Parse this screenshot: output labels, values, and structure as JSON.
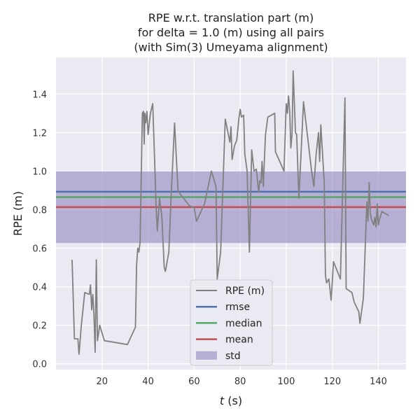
{
  "chart_data": {
    "type": "line",
    "title_lines": [
      "RPE w.r.t. translation part (m)",
      "for delta = 1.0 (m) using all pairs",
      "(with Sim(3) Umeyama alignment)"
    ],
    "xlabel_italic": "t",
    "xlabel_rest": " (s)",
    "ylabel": "RPE (m)",
    "xlim": [
      0,
      152
    ],
    "ylim": [
      -0.03,
      1.59
    ],
    "xticks": [
      20,
      40,
      60,
      80,
      100,
      120,
      140
    ],
    "yticks": [
      0.0,
      0.2,
      0.4,
      0.6,
      0.8,
      1.0,
      1.2,
      1.4
    ],
    "ytick_labels": [
      "0.0",
      "0.2",
      "0.4",
      "0.6",
      "0.8",
      "1.0",
      "1.2",
      "1.4"
    ],
    "grid": true,
    "legend_position": "lower center",
    "series": {
      "name": "RPE (m)",
      "color": "#808080",
      "x": [
        7.0,
        8.0,
        9.5,
        10.0,
        11.0,
        12.5,
        14.5,
        15.0,
        15.5,
        16.0,
        16.5,
        17.0,
        17.5,
        18.0,
        19.0,
        21.0,
        31.0,
        34.5,
        35.0,
        35.5,
        36.0,
        36.5,
        37.5,
        38.0,
        38.3,
        38.6,
        39.0,
        39.5,
        40.0,
        41.0,
        42.0,
        43.0,
        43.5,
        44.0,
        45.0,
        46.0,
        47.0,
        47.5,
        49.0,
        50.0,
        51.5,
        53.0,
        54.0,
        58.0,
        60.0,
        61.0,
        64.5,
        67.5,
        69.5,
        70.0,
        71.5,
        73.5,
        75.5,
        76.0,
        76.5,
        77.5,
        78.5,
        79.5,
        80.0,
        80.5,
        81.5,
        82.0,
        83.0,
        84.0,
        85.0,
        86.0,
        87.0,
        88.0,
        88.5,
        89.0,
        89.5,
        90.0,
        91.0,
        92.0,
        95.0,
        95.3,
        99.0,
        100.0,
        100.5,
        101.0,
        101.5,
        102.0,
        102.5,
        103.0,
        104.0,
        104.5,
        105.5,
        107.5,
        111.0,
        112.0,
        113.0,
        114.0,
        114.5,
        115.0,
        116.5,
        117.0,
        117.5,
        118.5,
        119.5,
        120.5,
        123.5,
        125.5,
        126.0,
        128.5,
        129.5,
        131.5,
        132.0,
        133.5,
        135.0,
        135.5,
        136.0,
        136.5,
        137.0,
        138.0,
        138.5,
        139.0,
        139.5,
        140.0,
        140.5,
        141.5,
        143.0,
        144.5
      ],
      "y": [
        0.54,
        0.13,
        0.13,
        0.05,
        0.2,
        0.37,
        0.36,
        0.41,
        0.28,
        0.36,
        0.25,
        0.06,
        0.54,
        0.12,
        0.2,
        0.12,
        0.1,
        0.19,
        0.51,
        0.6,
        0.58,
        0.63,
        1.3,
        1.31,
        1.14,
        1.3,
        1.25,
        1.31,
        1.19,
        1.3,
        1.35,
        1.0,
        0.81,
        0.69,
        0.86,
        0.76,
        0.5,
        0.48,
        0.58,
        0.87,
        1.25,
        0.9,
        0.88,
        0.82,
        0.81,
        0.74,
        0.83,
        1.0,
        0.92,
        0.44,
        0.58,
        1.27,
        1.15,
        1.23,
        1.06,
        1.13,
        1.16,
        1.28,
        1.32,
        1.28,
        1.29,
        1.09,
        1.0,
        0.58,
        1.11,
        1.0,
        1.01,
        0.89,
        0.95,
        0.94,
        1.05,
        0.92,
        1.19,
        1.28,
        1.3,
        1.1,
        1.0,
        1.35,
        1.3,
        1.39,
        1.31,
        1.12,
        1.19,
        1.52,
        1.2,
        1.19,
        0.86,
        1.36,
        1.0,
        0.92,
        1.09,
        1.2,
        1.05,
        1.24,
        0.94,
        0.46,
        0.42,
        0.44,
        0.33,
        0.53,
        0.44,
        1.38,
        0.39,
        0.37,
        0.32,
        0.27,
        0.21,
        0.34,
        0.84,
        0.74,
        0.94,
        0.78,
        0.75,
        0.72,
        0.76,
        0.71,
        0.83,
        0.72,
        0.75,
        0.79,
        0.78,
        0.77
      ]
    },
    "stats": {
      "rmse": 0.893,
      "median": 0.865,
      "mean": 0.813,
      "std_band": [
        0.627,
        0.999
      ]
    },
    "legend": [
      {
        "label": "RPE (m)",
        "kind": "line",
        "color": "#808080"
      },
      {
        "label": "rmse",
        "kind": "line",
        "color": "#4c72b0"
      },
      {
        "label": "median",
        "kind": "line",
        "color": "#55a868"
      },
      {
        "label": "mean",
        "kind": "line",
        "color": "#c44e52"
      },
      {
        "label": "std",
        "kind": "patch",
        "color": "#8172b3"
      }
    ]
  }
}
